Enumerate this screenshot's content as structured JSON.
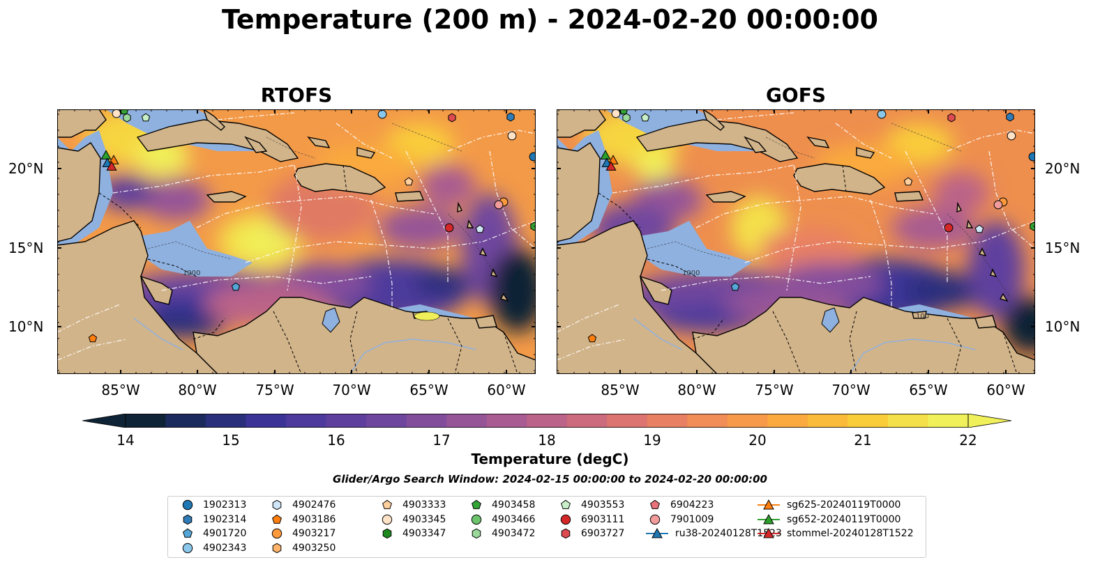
{
  "title": "Temperature (200 m) - 2024-02-20 00:00:00",
  "panels": [
    {
      "title": "RTOFS",
      "yticks_side": "left"
    },
    {
      "title": "GOFS",
      "yticks_side": "right"
    }
  ],
  "map_extent": {
    "lon": [
      -89.0,
      -58.0
    ],
    "lat": [
      7.0,
      24.0
    ]
  },
  "lat_ticks": [
    "20°N",
    "15°N",
    "10°N"
  ],
  "lon_ticks": [
    "85°W",
    "80°W",
    "75°W",
    "70°W",
    "65°W",
    "60°W"
  ],
  "colorbar": {
    "label": "Temperature (degC)",
    "ticks": [
      "14",
      "15",
      "16",
      "17",
      "18",
      "19",
      "20",
      "21",
      "22"
    ],
    "min": 14,
    "max": 22,
    "extend": "both",
    "colors": [
      "#0e2336",
      "#1b2a5c",
      "#2a2f7c",
      "#3b3496",
      "#4d3a9c",
      "#5e3f9e",
      "#6f469e",
      "#824e9c",
      "#955597",
      "#a85c91",
      "#bb6388",
      "#cd6b7e",
      "#dc7571",
      "#e88063",
      "#f18d56",
      "#f79b4a",
      "#faaa3e",
      "#fbbb3a",
      "#f9cd3a",
      "#f4e04a",
      "#f0f05a"
    ]
  },
  "search_window": "Glider/Argo Search Window: 2024-02-15 00:00:00 to 2024-02-20 00:00:00",
  "contour_labels": [
    "100",
    "1000"
  ],
  "legend": [
    {
      "label": "1902313",
      "marker": "circle",
      "color": "#1f77b4"
    },
    {
      "label": "1902314",
      "marker": "hexagon",
      "color": "#2f7cb8"
    },
    {
      "label": "4901720",
      "marker": "pentagon",
      "color": "#55a6d8"
    },
    {
      "label": "4902343",
      "marker": "circle",
      "color": "#8ac7ea"
    },
    {
      "label": "4902476",
      "marker": "hexagon",
      "color": "#cfe6f6"
    },
    {
      "label": "4903186",
      "marker": "pentagon",
      "color": "#ff7f0e"
    },
    {
      "label": "4903217",
      "marker": "circle",
      "color": "#ff9a3c"
    },
    {
      "label": "4903250",
      "marker": "hexagon",
      "color": "#ffb46a"
    },
    {
      "label": "4903333",
      "marker": "pentagon",
      "color": "#ffcf9e"
    },
    {
      "label": "4903345",
      "marker": "circle",
      "color": "#ffe3c8"
    },
    {
      "label": "4903347",
      "marker": "hexagon",
      "color": "#1e8a1e"
    },
    {
      "label": "4903458",
      "marker": "pentagon",
      "color": "#34a434"
    },
    {
      "label": "4903466",
      "marker": "circle",
      "color": "#6cc46c"
    },
    {
      "label": "4903472",
      "marker": "hexagon",
      "color": "#9ad99a"
    },
    {
      "label": "4903553",
      "marker": "pentagon",
      "color": "#c8efc8"
    },
    {
      "label": "6903111",
      "marker": "circle",
      "color": "#d62728"
    },
    {
      "label": "6903727",
      "marker": "hexagon",
      "color": "#dd4a50"
    },
    {
      "label": "6904223",
      "marker": "pentagon",
      "color": "#e8737a"
    },
    {
      "label": "7901009",
      "marker": "circle",
      "color": "#f29b9b"
    },
    {
      "label": "ru38-20240128T1523",
      "marker": "triangle-line",
      "color": "#1f77b4"
    },
    {
      "label": "sg625-20240119T0000",
      "marker": "triangle-line",
      "color": "#ff7f0e"
    },
    {
      "label": "sg652-20240119T0000",
      "marker": "triangle-line",
      "color": "#2ca02c"
    },
    {
      "label": "stommel-20240128T1522",
      "marker": "triangle-line",
      "color": "#d62728"
    }
  ]
}
